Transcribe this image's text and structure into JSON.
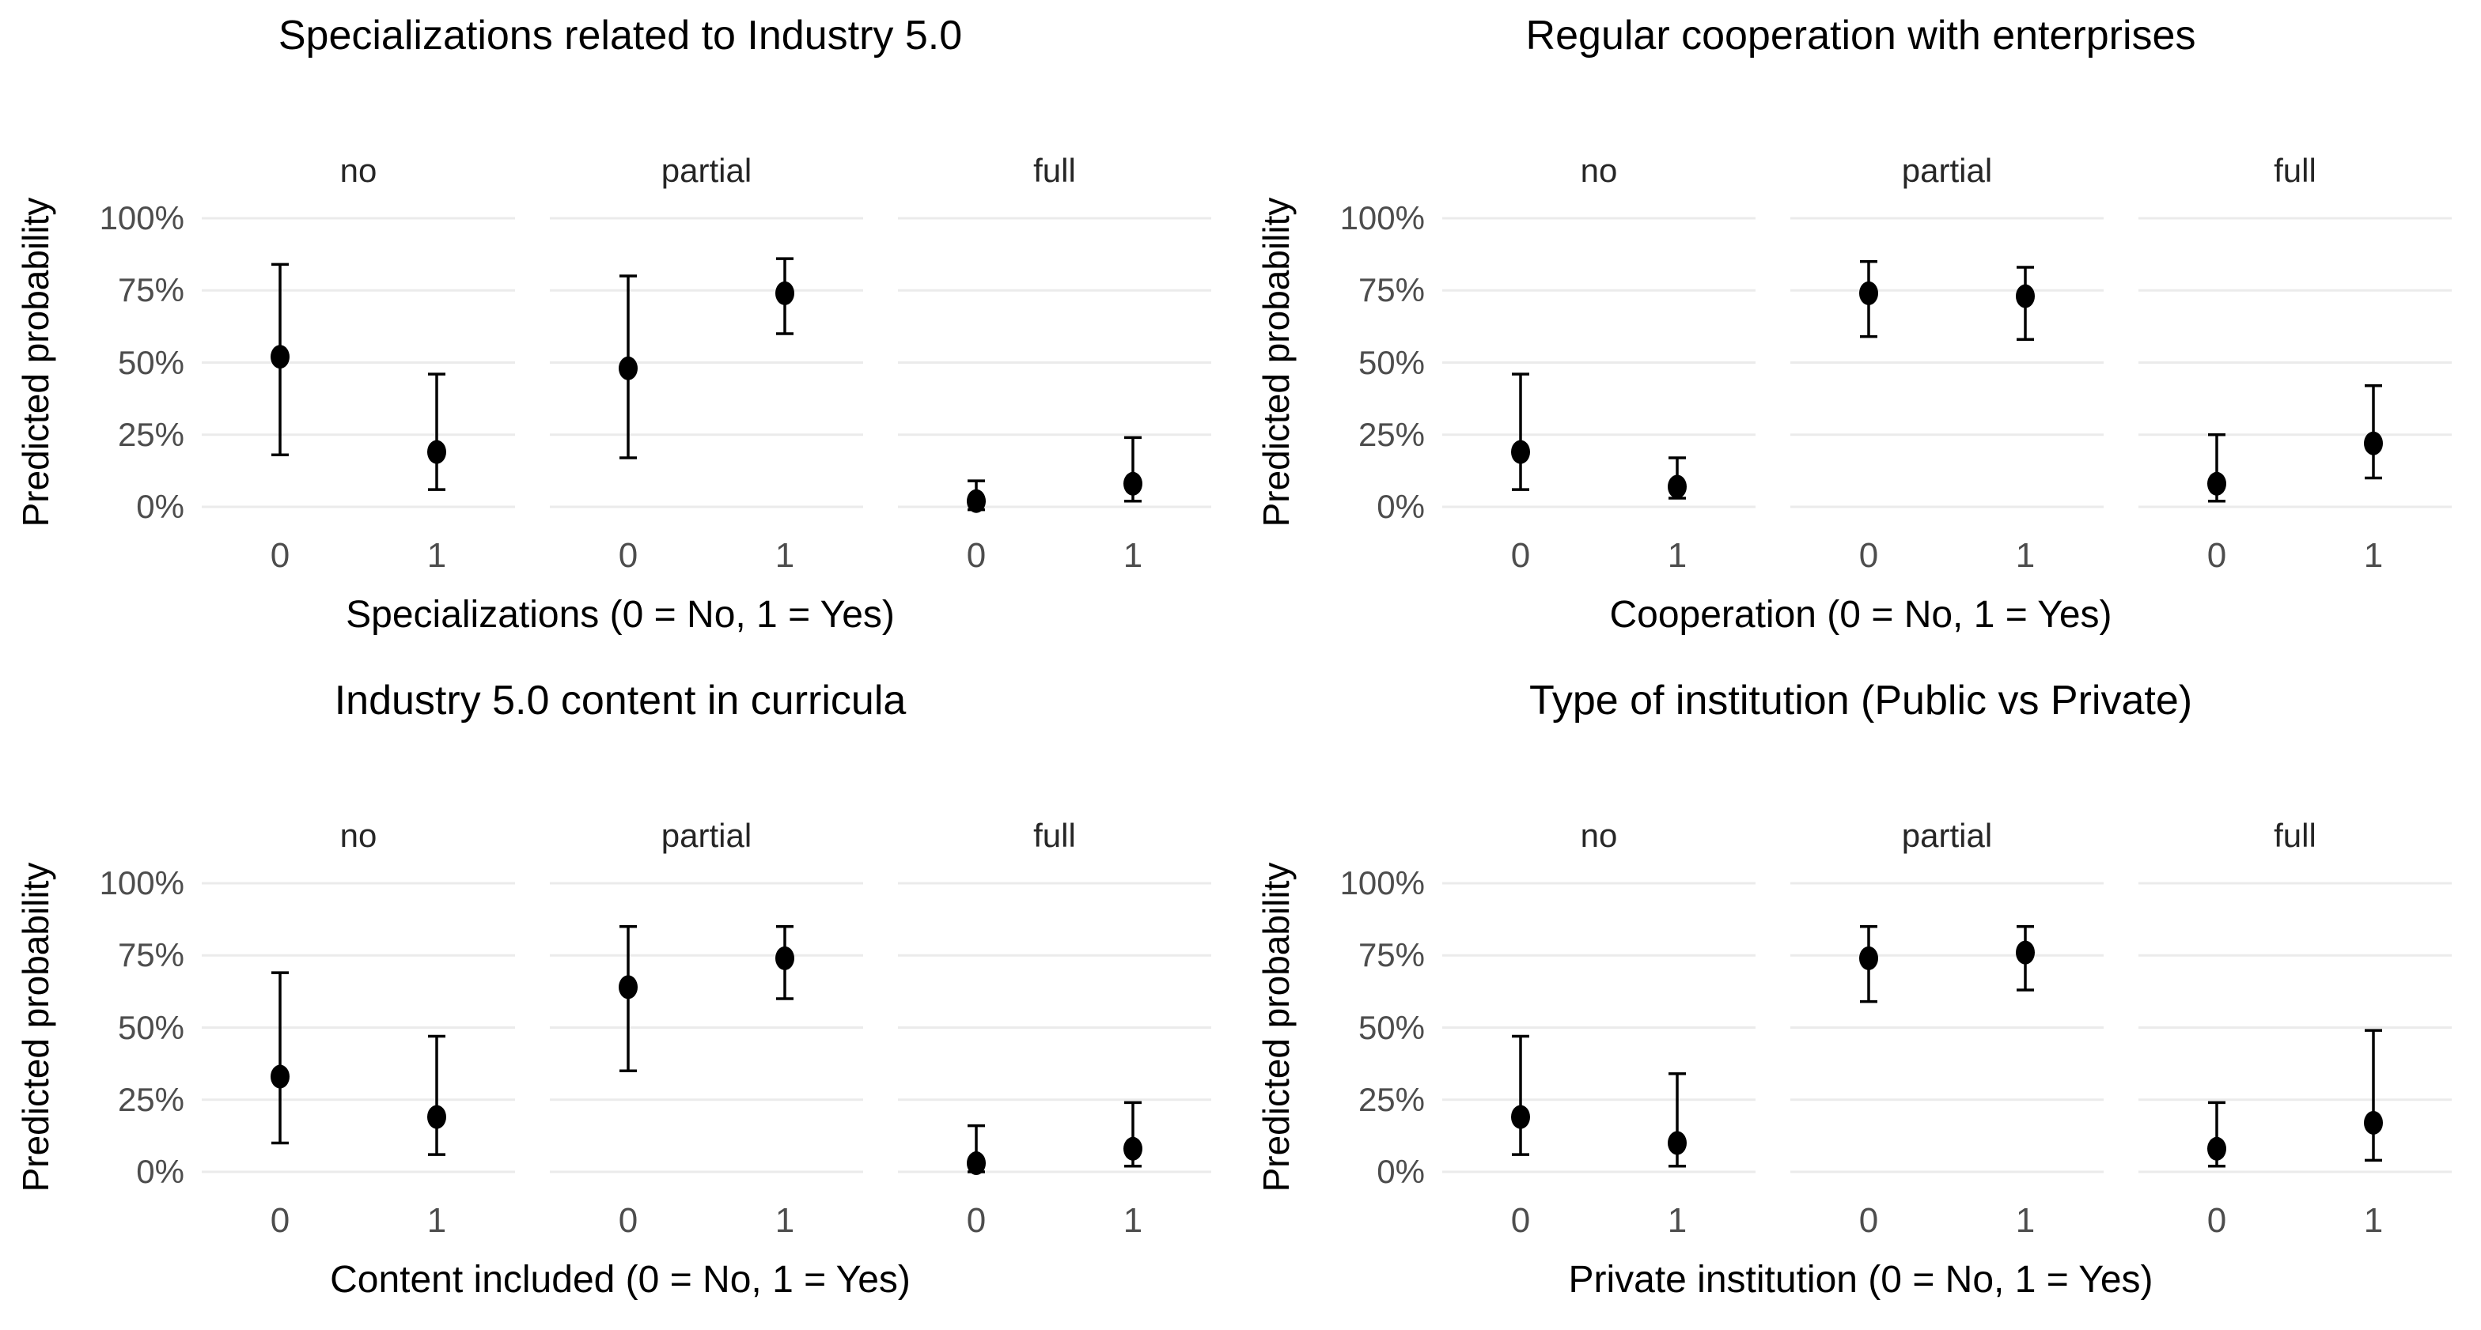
{
  "colors": {
    "background": "#ffffff",
    "point": "#000000",
    "errorbar": "#000000",
    "gridline": "#ebebeb",
    "axis_text": "#4d4d4d",
    "strip_text": "#262626",
    "title_text": "#000000"
  },
  "y_axis": {
    "label": "Predicted probability",
    "ticks": [
      "100%",
      "75%",
      "50%",
      "25%",
      "0%"
    ],
    "tick_values": [
      100,
      75,
      50,
      25,
      0
    ],
    "range": [
      0,
      100
    ],
    "grid": true
  },
  "x_tick_labels": [
    "0",
    "1"
  ],
  "facet_labels": [
    "no",
    "partial",
    "full"
  ],
  "chart_data": [
    {
      "type": "scatter",
      "title": "Specializations related to Industry 5.0",
      "xlabel": "Specializations (0 = No, 1 = Yes)",
      "ylabel": "Predicted probability",
      "facets": [
        "no",
        "partial",
        "full"
      ],
      "x": [
        "0",
        "1"
      ],
      "ylim": [
        0,
        100
      ],
      "legend": "none",
      "series": [
        {
          "facet": "no",
          "points": [
            {
              "x": "0",
              "y": 52,
              "ymin": 18,
              "ymax": 84
            },
            {
              "x": "1",
              "y": 19,
              "ymin": 6,
              "ymax": 46
            }
          ]
        },
        {
          "facet": "partial",
          "points": [
            {
              "x": "0",
              "y": 48,
              "ymin": 17,
              "ymax": 80
            },
            {
              "x": "1",
              "y": 74,
              "ymin": 60,
              "ymax": 86
            }
          ]
        },
        {
          "facet": "full",
          "points": [
            {
              "x": "0",
              "y": 2,
              "ymin": -1,
              "ymax": 9
            },
            {
              "x": "1",
              "y": 8,
              "ymin": 2,
              "ymax": 24
            }
          ]
        }
      ]
    },
    {
      "type": "scatter",
      "title": "Regular cooperation with enterprises",
      "xlabel": "Cooperation (0 = No, 1 = Yes)",
      "ylabel": "Predicted probability",
      "facets": [
        "no",
        "partial",
        "full"
      ],
      "x": [
        "0",
        "1"
      ],
      "ylim": [
        0,
        100
      ],
      "legend": "none",
      "series": [
        {
          "facet": "no",
          "points": [
            {
              "x": "0",
              "y": 19,
              "ymin": 6,
              "ymax": 46
            },
            {
              "x": "1",
              "y": 7,
              "ymin": 3,
              "ymax": 17
            }
          ]
        },
        {
          "facet": "partial",
          "points": [
            {
              "x": "0",
              "y": 74,
              "ymin": 59,
              "ymax": 85
            },
            {
              "x": "1",
              "y": 73,
              "ymin": 58,
              "ymax": 83
            }
          ]
        },
        {
          "facet": "full",
          "points": [
            {
              "x": "0",
              "y": 8,
              "ymin": 2,
              "ymax": 25
            },
            {
              "x": "1",
              "y": 22,
              "ymin": 10,
              "ymax": 42
            }
          ]
        }
      ]
    },
    {
      "type": "scatter",
      "title": "Industry 5.0 content in curricula",
      "xlabel": "Content included (0 = No, 1 = Yes)",
      "ylabel": "Predicted probability",
      "facets": [
        "no",
        "partial",
        "full"
      ],
      "x": [
        "0",
        "1"
      ],
      "ylim": [
        0,
        100
      ],
      "legend": "none",
      "series": [
        {
          "facet": "no",
          "points": [
            {
              "x": "0",
              "y": 33,
              "ymin": 10,
              "ymax": 69
            },
            {
              "x": "1",
              "y": 19,
              "ymin": 6,
              "ymax": 47
            }
          ]
        },
        {
          "facet": "partial",
          "points": [
            {
              "x": "0",
              "y": 64,
              "ymin": 35,
              "ymax": 85
            },
            {
              "x": "1",
              "y": 74,
              "ymin": 60,
              "ymax": 85
            }
          ]
        },
        {
          "facet": "full",
          "points": [
            {
              "x": "0",
              "y": 3,
              "ymin": 0,
              "ymax": 16
            },
            {
              "x": "1",
              "y": 8,
              "ymin": 2,
              "ymax": 24
            }
          ]
        }
      ]
    },
    {
      "type": "scatter",
      "title": "Type of institution (Public vs Private)",
      "xlabel": "Private institution (0 = No, 1 = Yes)",
      "ylabel": "Predicted probability",
      "facets": [
        "no",
        "partial",
        "full"
      ],
      "x": [
        "0",
        "1"
      ],
      "ylim": [
        0,
        100
      ],
      "legend": "none",
      "series": [
        {
          "facet": "no",
          "points": [
            {
              "x": "0",
              "y": 19,
              "ymin": 6,
              "ymax": 47
            },
            {
              "x": "1",
              "y": 10,
              "ymin": 2,
              "ymax": 34
            }
          ]
        },
        {
          "facet": "partial",
          "points": [
            {
              "x": "0",
              "y": 74,
              "ymin": 59,
              "ymax": 85
            },
            {
              "x": "1",
              "y": 76,
              "ymin": 63,
              "ymax": 85
            }
          ]
        },
        {
          "facet": "full",
          "points": [
            {
              "x": "0",
              "y": 8,
              "ymin": 2,
              "ymax": 24
            },
            {
              "x": "1",
              "y": 17,
              "ymin": 4,
              "ymax": 49
            }
          ]
        }
      ]
    }
  ]
}
